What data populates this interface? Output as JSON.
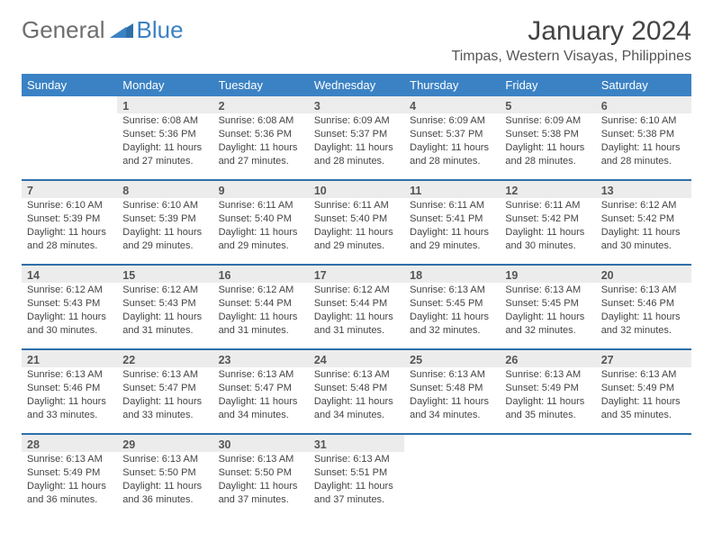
{
  "brand": {
    "part1": "General",
    "part2": "Blue",
    "accent": "#3b82c4",
    "muted": "#6e6e6e"
  },
  "title": "January 2024",
  "location": "Timpas, Western Visayas, Philippines",
  "colors": {
    "header_bg": "#3b82c4",
    "header_text": "#ffffff",
    "daynum_bg": "#ececec",
    "row_sep": "#2f6fa8",
    "text": "#444444"
  },
  "day_headers": [
    "Sunday",
    "Monday",
    "Tuesday",
    "Wednesday",
    "Thursday",
    "Friday",
    "Saturday"
  ],
  "weeks": [
    [
      null,
      {
        "n": "1",
        "sr": "6:08 AM",
        "ss": "5:36 PM",
        "dl": "11 hours and 27 minutes."
      },
      {
        "n": "2",
        "sr": "6:08 AM",
        "ss": "5:36 PM",
        "dl": "11 hours and 27 minutes."
      },
      {
        "n": "3",
        "sr": "6:09 AM",
        "ss": "5:37 PM",
        "dl": "11 hours and 28 minutes."
      },
      {
        "n": "4",
        "sr": "6:09 AM",
        "ss": "5:37 PM",
        "dl": "11 hours and 28 minutes."
      },
      {
        "n": "5",
        "sr": "6:09 AM",
        "ss": "5:38 PM",
        "dl": "11 hours and 28 minutes."
      },
      {
        "n": "6",
        "sr": "6:10 AM",
        "ss": "5:38 PM",
        "dl": "11 hours and 28 minutes."
      }
    ],
    [
      {
        "n": "7",
        "sr": "6:10 AM",
        "ss": "5:39 PM",
        "dl": "11 hours and 28 minutes."
      },
      {
        "n": "8",
        "sr": "6:10 AM",
        "ss": "5:39 PM",
        "dl": "11 hours and 29 minutes."
      },
      {
        "n": "9",
        "sr": "6:11 AM",
        "ss": "5:40 PM",
        "dl": "11 hours and 29 minutes."
      },
      {
        "n": "10",
        "sr": "6:11 AM",
        "ss": "5:40 PM",
        "dl": "11 hours and 29 minutes."
      },
      {
        "n": "11",
        "sr": "6:11 AM",
        "ss": "5:41 PM",
        "dl": "11 hours and 29 minutes."
      },
      {
        "n": "12",
        "sr": "6:11 AM",
        "ss": "5:42 PM",
        "dl": "11 hours and 30 minutes."
      },
      {
        "n": "13",
        "sr": "6:12 AM",
        "ss": "5:42 PM",
        "dl": "11 hours and 30 minutes."
      }
    ],
    [
      {
        "n": "14",
        "sr": "6:12 AM",
        "ss": "5:43 PM",
        "dl": "11 hours and 30 minutes."
      },
      {
        "n": "15",
        "sr": "6:12 AM",
        "ss": "5:43 PM",
        "dl": "11 hours and 31 minutes."
      },
      {
        "n": "16",
        "sr": "6:12 AM",
        "ss": "5:44 PM",
        "dl": "11 hours and 31 minutes."
      },
      {
        "n": "17",
        "sr": "6:12 AM",
        "ss": "5:44 PM",
        "dl": "11 hours and 31 minutes."
      },
      {
        "n": "18",
        "sr": "6:13 AM",
        "ss": "5:45 PM",
        "dl": "11 hours and 32 minutes."
      },
      {
        "n": "19",
        "sr": "6:13 AM",
        "ss": "5:45 PM",
        "dl": "11 hours and 32 minutes."
      },
      {
        "n": "20",
        "sr": "6:13 AM",
        "ss": "5:46 PM",
        "dl": "11 hours and 32 minutes."
      }
    ],
    [
      {
        "n": "21",
        "sr": "6:13 AM",
        "ss": "5:46 PM",
        "dl": "11 hours and 33 minutes."
      },
      {
        "n": "22",
        "sr": "6:13 AM",
        "ss": "5:47 PM",
        "dl": "11 hours and 33 minutes."
      },
      {
        "n": "23",
        "sr": "6:13 AM",
        "ss": "5:47 PM",
        "dl": "11 hours and 34 minutes."
      },
      {
        "n": "24",
        "sr": "6:13 AM",
        "ss": "5:48 PM",
        "dl": "11 hours and 34 minutes."
      },
      {
        "n": "25",
        "sr": "6:13 AM",
        "ss": "5:48 PM",
        "dl": "11 hours and 34 minutes."
      },
      {
        "n": "26",
        "sr": "6:13 AM",
        "ss": "5:49 PM",
        "dl": "11 hours and 35 minutes."
      },
      {
        "n": "27",
        "sr": "6:13 AM",
        "ss": "5:49 PM",
        "dl": "11 hours and 35 minutes."
      }
    ],
    [
      {
        "n": "28",
        "sr": "6:13 AM",
        "ss": "5:49 PM",
        "dl": "11 hours and 36 minutes."
      },
      {
        "n": "29",
        "sr": "6:13 AM",
        "ss": "5:50 PM",
        "dl": "11 hours and 36 minutes."
      },
      {
        "n": "30",
        "sr": "6:13 AM",
        "ss": "5:50 PM",
        "dl": "11 hours and 37 minutes."
      },
      {
        "n": "31",
        "sr": "6:13 AM",
        "ss": "5:51 PM",
        "dl": "11 hours and 37 minutes."
      },
      null,
      null,
      null
    ]
  ],
  "labels": {
    "sunrise": "Sunrise:",
    "sunset": "Sunset:",
    "daylight": "Daylight:"
  }
}
